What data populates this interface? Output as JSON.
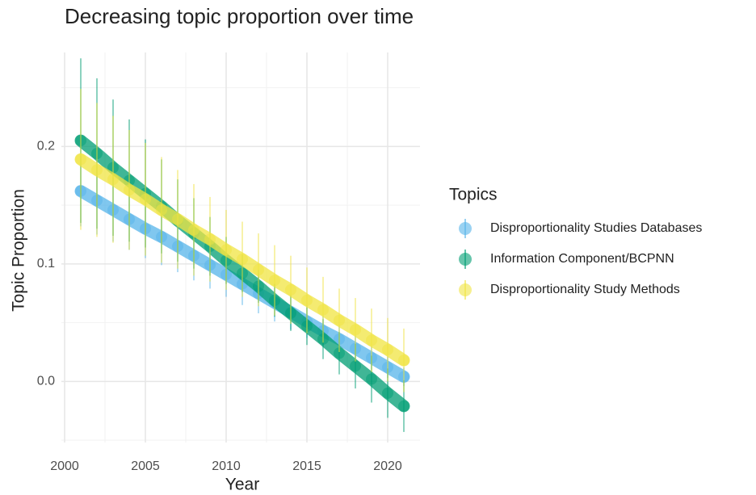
{
  "chart_data": {
    "type": "errorbar-line",
    "title": "Decreasing topic proportion over time",
    "x_label": "Year",
    "y_label": "Topic Proportion",
    "legend_title": "Topics",
    "x": [
      2001,
      2002,
      2003,
      2004,
      2005,
      2006,
      2007,
      2008,
      2009,
      2010,
      2011,
      2012,
      2013,
      2014,
      2015,
      2016,
      2017,
      2018,
      2019,
      2020,
      2021
    ],
    "series": [
      {
        "name": "Disproportionality Studies Databases",
        "color": "#56b4e9",
        "values": [
          0.162,
          0.154,
          0.146,
          0.138,
          0.13,
          0.123,
          0.115,
          0.107,
          0.099,
          0.091,
          0.083,
          0.075,
          0.067,
          0.059,
          0.051,
          0.043,
          0.036,
          0.028,
          0.02,
          0.012,
          0.004
        ],
        "errors": [
          0.03,
          0.029,
          0.027,
          0.026,
          0.025,
          0.024,
          0.022,
          0.021,
          0.02,
          0.019,
          0.018,
          0.017,
          0.016,
          0.015,
          0.014,
          0.013,
          0.012,
          0.011,
          0.01,
          0.009,
          0.008
        ]
      },
      {
        "name": "Information Component/BCPNN",
        "color": "#009e73",
        "values": [
          0.205,
          0.194,
          0.182,
          0.171,
          0.16,
          0.149,
          0.137,
          0.126,
          0.115,
          0.103,
          0.092,
          0.081,
          0.069,
          0.058,
          0.047,
          0.036,
          0.024,
          0.013,
          0.002,
          -0.01,
          -0.021
        ],
        "errors": [
          0.07,
          0.064,
          0.058,
          0.052,
          0.046,
          0.04,
          0.035,
          0.03,
          0.025,
          0.02,
          0.016,
          0.014,
          0.014,
          0.015,
          0.016,
          0.017,
          0.018,
          0.019,
          0.02,
          0.021,
          0.022
        ]
      },
      {
        "name": "Disproportionality Study Methods",
        "color": "#f0e442",
        "values": [
          0.189,
          0.18,
          0.172,
          0.163,
          0.155,
          0.146,
          0.138,
          0.129,
          0.121,
          0.112,
          0.104,
          0.095,
          0.086,
          0.078,
          0.069,
          0.061,
          0.052,
          0.044,
          0.035,
          0.027,
          0.018
        ],
        "errors": [
          0.06,
          0.057,
          0.054,
          0.051,
          0.048,
          0.045,
          0.042,
          0.039,
          0.036,
          0.034,
          0.032,
          0.031,
          0.03,
          0.029,
          0.028,
          0.028,
          0.027,
          0.027,
          0.027,
          0.027,
          0.027
        ]
      }
    ],
    "xlim": [
      1999.8,
      2022
    ],
    "ylim": [
      -0.052,
      0.28
    ],
    "xticks": [
      2000,
      2005,
      2010,
      2015,
      2020
    ],
    "yticks": [
      {
        "value": 0,
        "label": "0.0"
      },
      0.1,
      0.2
    ],
    "grid": true,
    "minor_grid": true
  }
}
